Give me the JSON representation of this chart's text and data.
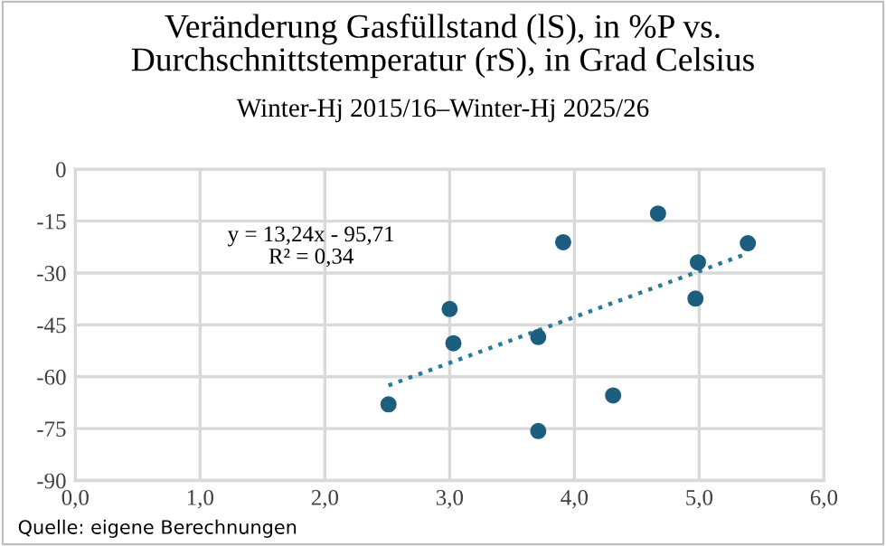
{
  "chart_data": {
    "type": "scatter",
    "title": "Veränderung Gasfüllstand (lS), in %P vs.\nDurchschnittstemperatur (rS), in Grad Celsius",
    "subtitle": "Winter-Hj 2015/16–Winter-Hj 2025/26",
    "x": [
      2.51,
      3.0,
      3.03,
      3.71,
      3.71,
      3.91,
      4.31,
      4.67,
      4.97,
      4.99,
      5.39
    ],
    "series": [
      {
        "color": "#1b5e7e",
        "values": [
          -68.0,
          -40.4,
          -50.3,
          -48.5,
          -75.7,
          -21.1,
          -65.4,
          -12.8,
          -37.4,
          -26.9,
          -21.4
        ],
        "marker": "circle"
      },
      {
        "type": "line",
        "color": "#2a7aa0",
        "x": [
          2.51,
          5.39
        ],
        "values": [
          -62.5,
          -24.3
        ],
        "line_style": "dotted",
        "marker": "none"
      }
    ],
    "xlim": [
      0,
      6
    ],
    "xticks": [
      {
        "value": 0,
        "label": "0,0"
      },
      {
        "value": 1,
        "label": "1,0"
      },
      {
        "value": 2,
        "label": "2,0"
      },
      {
        "value": 3,
        "label": "3,0"
      },
      {
        "value": 4,
        "label": "4,0"
      },
      {
        "value": 5,
        "label": "5,0"
      },
      {
        "value": 6,
        "label": "6,0"
      }
    ],
    "ylim": [
      -90,
      0
    ],
    "yticks": [
      -90,
      -75,
      -60,
      -45,
      -30,
      -15,
      0
    ],
    "grid": true,
    "annotations": [
      "y = 13,24x - 95,71\nR² = 0,34",
      "Quelle: eigene Berechnungen"
    ]
  }
}
